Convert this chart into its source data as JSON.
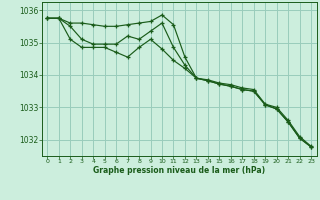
{
  "title": "Graphe pression niveau de la mer (hPa)",
  "bg_color": "#cceedd",
  "grid_color": "#99ccbb",
  "line_color": "#1a5c1a",
  "xlim": [
    -0.5,
    23.5
  ],
  "ylim": [
    1031.5,
    1036.25
  ],
  "yticks": [
    1032,
    1033,
    1034,
    1035,
    1036
  ],
  "xticks": [
    0,
    1,
    2,
    3,
    4,
    5,
    6,
    7,
    8,
    9,
    10,
    11,
    12,
    13,
    14,
    15,
    16,
    17,
    18,
    19,
    20,
    21,
    22,
    23
  ],
  "line1_x": [
    0,
    1,
    2,
    3,
    4,
    5,
    6,
    7,
    8,
    9,
    10,
    11,
    12,
    13,
    14,
    15,
    16,
    17,
    18,
    19,
    20,
    21,
    22,
    23
  ],
  "line1_y": [
    1035.75,
    1035.75,
    1035.6,
    1035.6,
    1035.55,
    1035.5,
    1035.5,
    1035.55,
    1035.6,
    1035.65,
    1035.85,
    1035.55,
    1034.55,
    1033.9,
    1033.85,
    1033.75,
    1033.7,
    1033.6,
    1033.55,
    1033.1,
    1033.0,
    1032.6,
    1032.1,
    1031.8
  ],
  "line2_x": [
    0,
    1,
    2,
    3,
    4,
    5,
    6,
    7,
    8,
    9,
    10,
    11,
    12,
    13,
    14,
    15,
    16,
    17,
    18,
    19,
    20,
    21,
    22,
    23
  ],
  "line2_y": [
    1035.75,
    1035.75,
    1035.5,
    1035.1,
    1034.95,
    1034.95,
    1034.95,
    1035.2,
    1035.1,
    1035.35,
    1035.6,
    1034.85,
    1034.3,
    1033.9,
    1033.82,
    1033.72,
    1033.65,
    1033.55,
    1033.5,
    1033.08,
    1032.95,
    1032.55,
    1032.05,
    1031.78
  ],
  "line3_x": [
    0,
    1,
    2,
    3,
    4,
    5,
    6,
    7,
    8,
    9,
    10,
    11,
    12,
    13,
    14,
    15,
    16,
    17,
    18,
    19,
    20,
    21,
    22,
    23
  ],
  "line3_y": [
    1035.75,
    1035.75,
    1035.1,
    1034.85,
    1034.85,
    1034.85,
    1034.7,
    1034.55,
    1034.85,
    1035.1,
    1034.8,
    1034.45,
    1034.2,
    1033.9,
    1033.82,
    1033.72,
    1033.65,
    1033.55,
    1033.5,
    1033.08,
    1032.95,
    1032.55,
    1032.05,
    1031.78
  ]
}
